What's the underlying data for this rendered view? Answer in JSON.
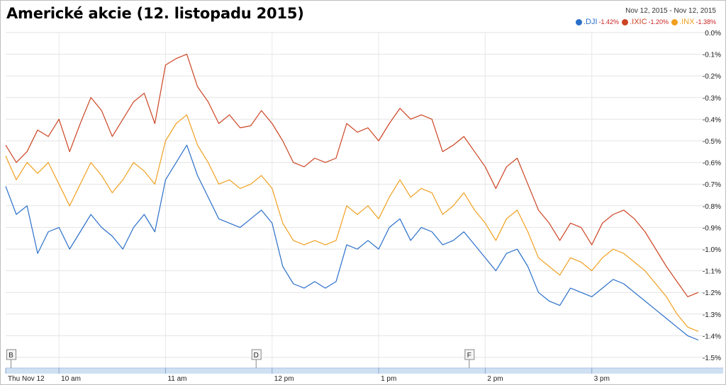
{
  "header": {
    "title": "Americké akcie (12. listopadu 2015)",
    "date_range": "Nov 12, 2015  -  Nov 12, 2015"
  },
  "legend": [
    {
      "symbol": ".DJI",
      "change": "-1.42%",
      "color": "#2a6fc9"
    },
    {
      "symbol": ".IXIC",
      "change": "-1.20%",
      "color": "#cc4422"
    },
    {
      "symbol": ".INX",
      "change": "-1.38%",
      "color": "#f0a020"
    }
  ],
  "markers": [
    "B",
    "D",
    "F"
  ],
  "chart_data": {
    "type": "line",
    "title": "Americké akcie (12. listopadu 2015)",
    "x_tick_labels": [
      "Thu Nov 12",
      "10 am",
      "11 am",
      "12 pm",
      "1 pm",
      "2 pm",
      "3 pm"
    ],
    "y_tick_labels": [
      "0.0%",
      "-0.1%",
      "-0.2%",
      "-0.3%",
      "-0.4%",
      "-0.5%",
      "-0.6%",
      "-0.7%",
      "-0.8%",
      "-0.9%",
      "-1.0%",
      "-1.1%",
      "-1.2%",
      "-1.3%",
      "-1.4%",
      "-1.5%"
    ],
    "ylim": [
      -1.5,
      0.0
    ],
    "xlim": [
      9.5,
      16.0
    ],
    "x_units": "hour of day",
    "grid": true,
    "legend_position": "top-right",
    "series": [
      {
        "name": ".IXIC",
        "color": "#cc4422",
        "x": [
          9.5,
          9.6,
          9.7,
          9.8,
          9.9,
          10.0,
          10.1,
          10.2,
          10.3,
          10.4,
          10.5,
          10.6,
          10.7,
          10.8,
          10.9,
          11.0,
          11.1,
          11.2,
          11.3,
          11.4,
          11.5,
          11.6,
          11.7,
          11.8,
          11.9,
          12.0,
          12.1,
          12.2,
          12.3,
          12.4,
          12.5,
          12.6,
          12.7,
          12.8,
          12.9,
          13.0,
          13.1,
          13.2,
          13.3,
          13.4,
          13.5,
          13.6,
          13.7,
          13.8,
          13.9,
          14.0,
          14.1,
          14.2,
          14.3,
          14.4,
          14.5,
          14.6,
          14.7,
          14.8,
          14.9,
          15.0,
          15.1,
          15.2,
          15.3,
          15.4,
          15.5,
          15.6,
          15.7,
          15.8,
          15.9,
          16.0
        ],
        "y": [
          -0.52,
          -0.6,
          -0.55,
          -0.45,
          -0.48,
          -0.4,
          -0.55,
          -0.42,
          -0.3,
          -0.36,
          -0.48,
          -0.4,
          -0.32,
          -0.28,
          -0.42,
          -0.15,
          -0.12,
          -0.1,
          -0.25,
          -0.32,
          -0.42,
          -0.38,
          -0.44,
          -0.43,
          -0.36,
          -0.42,
          -0.5,
          -0.6,
          -0.62,
          -0.58,
          -0.6,
          -0.58,
          -0.42,
          -0.46,
          -0.44,
          -0.5,
          -0.42,
          -0.35,
          -0.4,
          -0.38,
          -0.4,
          -0.55,
          -0.52,
          -0.48,
          -0.55,
          -0.62,
          -0.72,
          -0.62,
          -0.58,
          -0.7,
          -0.82,
          -0.88,
          -0.96,
          -0.88,
          -0.9,
          -0.98,
          -0.88,
          -0.84,
          -0.82,
          -0.86,
          -0.92,
          -1.0,
          -1.08,
          -1.15,
          -1.22,
          -1.2
        ]
      },
      {
        "name": ".INX",
        "color": "#f0a020",
        "x": [
          9.5,
          9.6,
          9.7,
          9.8,
          9.9,
          10.0,
          10.1,
          10.2,
          10.3,
          10.4,
          10.5,
          10.6,
          10.7,
          10.8,
          10.9,
          11.0,
          11.1,
          11.2,
          11.3,
          11.4,
          11.5,
          11.6,
          11.7,
          11.8,
          11.9,
          12.0,
          12.1,
          12.2,
          12.3,
          12.4,
          12.5,
          12.6,
          12.7,
          12.8,
          12.9,
          13.0,
          13.1,
          13.2,
          13.3,
          13.4,
          13.5,
          13.6,
          13.7,
          13.8,
          13.9,
          14.0,
          14.1,
          14.2,
          14.3,
          14.4,
          14.5,
          14.6,
          14.7,
          14.8,
          14.9,
          15.0,
          15.1,
          15.2,
          15.3,
          15.4,
          15.5,
          15.6,
          15.7,
          15.8,
          15.9,
          16.0
        ],
        "y": [
          -0.57,
          -0.68,
          -0.6,
          -0.65,
          -0.6,
          -0.7,
          -0.8,
          -0.7,
          -0.6,
          -0.66,
          -0.74,
          -0.68,
          -0.6,
          -0.64,
          -0.7,
          -0.5,
          -0.42,
          -0.38,
          -0.52,
          -0.6,
          -0.7,
          -0.68,
          -0.72,
          -0.7,
          -0.66,
          -0.72,
          -0.88,
          -0.96,
          -0.98,
          -0.96,
          -0.98,
          -0.96,
          -0.8,
          -0.84,
          -0.8,
          -0.86,
          -0.76,
          -0.68,
          -0.76,
          -0.72,
          -0.74,
          -0.84,
          -0.8,
          -0.74,
          -0.82,
          -0.88,
          -0.96,
          -0.86,
          -0.82,
          -0.92,
          -1.04,
          -1.08,
          -1.12,
          -1.04,
          -1.06,
          -1.1,
          -1.04,
          -1.0,
          -1.02,
          -1.06,
          -1.1,
          -1.16,
          -1.22,
          -1.3,
          -1.36,
          -1.38
        ]
      },
      {
        "name": ".DJI",
        "color": "#2a6fc9",
        "x": [
          9.5,
          9.6,
          9.7,
          9.8,
          9.9,
          10.0,
          10.1,
          10.2,
          10.3,
          10.4,
          10.5,
          10.6,
          10.7,
          10.8,
          10.9,
          11.0,
          11.1,
          11.2,
          11.3,
          11.4,
          11.5,
          11.6,
          11.7,
          11.8,
          11.9,
          12.0,
          12.1,
          12.2,
          12.3,
          12.4,
          12.5,
          12.6,
          12.7,
          12.8,
          12.9,
          13.0,
          13.1,
          13.2,
          13.3,
          13.4,
          13.5,
          13.6,
          13.7,
          13.8,
          13.9,
          14.0,
          14.1,
          14.2,
          14.3,
          14.4,
          14.5,
          14.6,
          14.7,
          14.8,
          14.9,
          15.0,
          15.1,
          15.2,
          15.3,
          15.4,
          15.5,
          15.6,
          15.7,
          15.8,
          15.9,
          16.0
        ],
        "y": [
          -0.71,
          -0.84,
          -0.8,
          -1.02,
          -0.92,
          -0.9,
          -1.0,
          -0.92,
          -0.84,
          -0.9,
          -0.94,
          -1.0,
          -0.9,
          -0.84,
          -0.92,
          -0.68,
          -0.6,
          -0.52,
          -0.66,
          -0.76,
          -0.86,
          -0.88,
          -0.9,
          -0.86,
          -0.82,
          -0.88,
          -1.08,
          -1.16,
          -1.18,
          -1.15,
          -1.18,
          -1.15,
          -0.98,
          -1.0,
          -0.96,
          -1.0,
          -0.9,
          -0.86,
          -0.96,
          -0.9,
          -0.92,
          -0.98,
          -0.96,
          -0.92,
          -0.98,
          -1.04,
          -1.1,
          -1.02,
          -1.0,
          -1.08,
          -1.2,
          -1.24,
          -1.26,
          -1.18,
          -1.2,
          -1.22,
          -1.18,
          -1.14,
          -1.16,
          -1.2,
          -1.24,
          -1.28,
          -1.32,
          -1.36,
          -1.4,
          -1.42
        ]
      }
    ]
  }
}
